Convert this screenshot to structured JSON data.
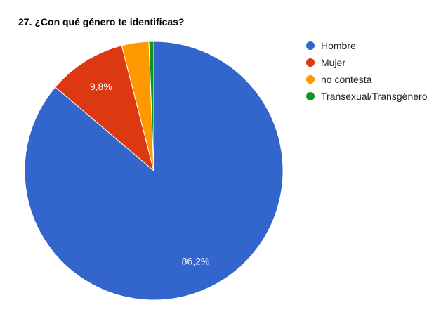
{
  "chart_data": {
    "type": "pie",
    "title": "27. ¿Con qué género te identificas?",
    "categories": [
      "Hombre",
      "Mujer",
      "no contesta",
      "Transexual/Transgénero"
    ],
    "values": [
      86.2,
      9.8,
      3.4,
      0.6
    ],
    "data_labels": [
      "86,2%",
      "9,8%",
      "",
      ""
    ],
    "colors": [
      "#3366cc",
      "#dc3912",
      "#ff9900",
      "#109618"
    ],
    "start_angle_deg": 0,
    "direction": "clockwise",
    "legend_position": "right"
  }
}
